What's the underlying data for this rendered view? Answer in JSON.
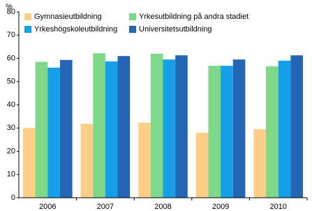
{
  "chart_data": {
    "type": "bar",
    "y_label": "%",
    "categories": [
      "2006",
      "2007",
      "2008",
      "2009",
      "2010"
    ],
    "series": [
      {
        "name": "Gymnasieutbildning",
        "color": "#fdcf86",
        "values": [
          30.0,
          31.8,
          32.3,
          28.0,
          29.5
        ]
      },
      {
        "name": "Yrkesutbildning på andra stadiet",
        "color": "#7fd88a",
        "values": [
          58.5,
          62.2,
          62.0,
          56.8,
          56.6
        ]
      },
      {
        "name": "Yrkeshögskoleutbildning",
        "color": "#16a0e8",
        "values": [
          56.0,
          58.7,
          59.5,
          56.8,
          59.0
        ]
      },
      {
        "name": "Universitetsutbildning",
        "color": "#2466b3",
        "values": [
          59.3,
          61.0,
          61.3,
          59.5,
          61.3
        ]
      }
    ],
    "ylim": [
      0,
      80
    ],
    "yticks": [
      0,
      10,
      20,
      30,
      40,
      50,
      60,
      70,
      80
    ],
    "grid": false,
    "legend": "top"
  }
}
